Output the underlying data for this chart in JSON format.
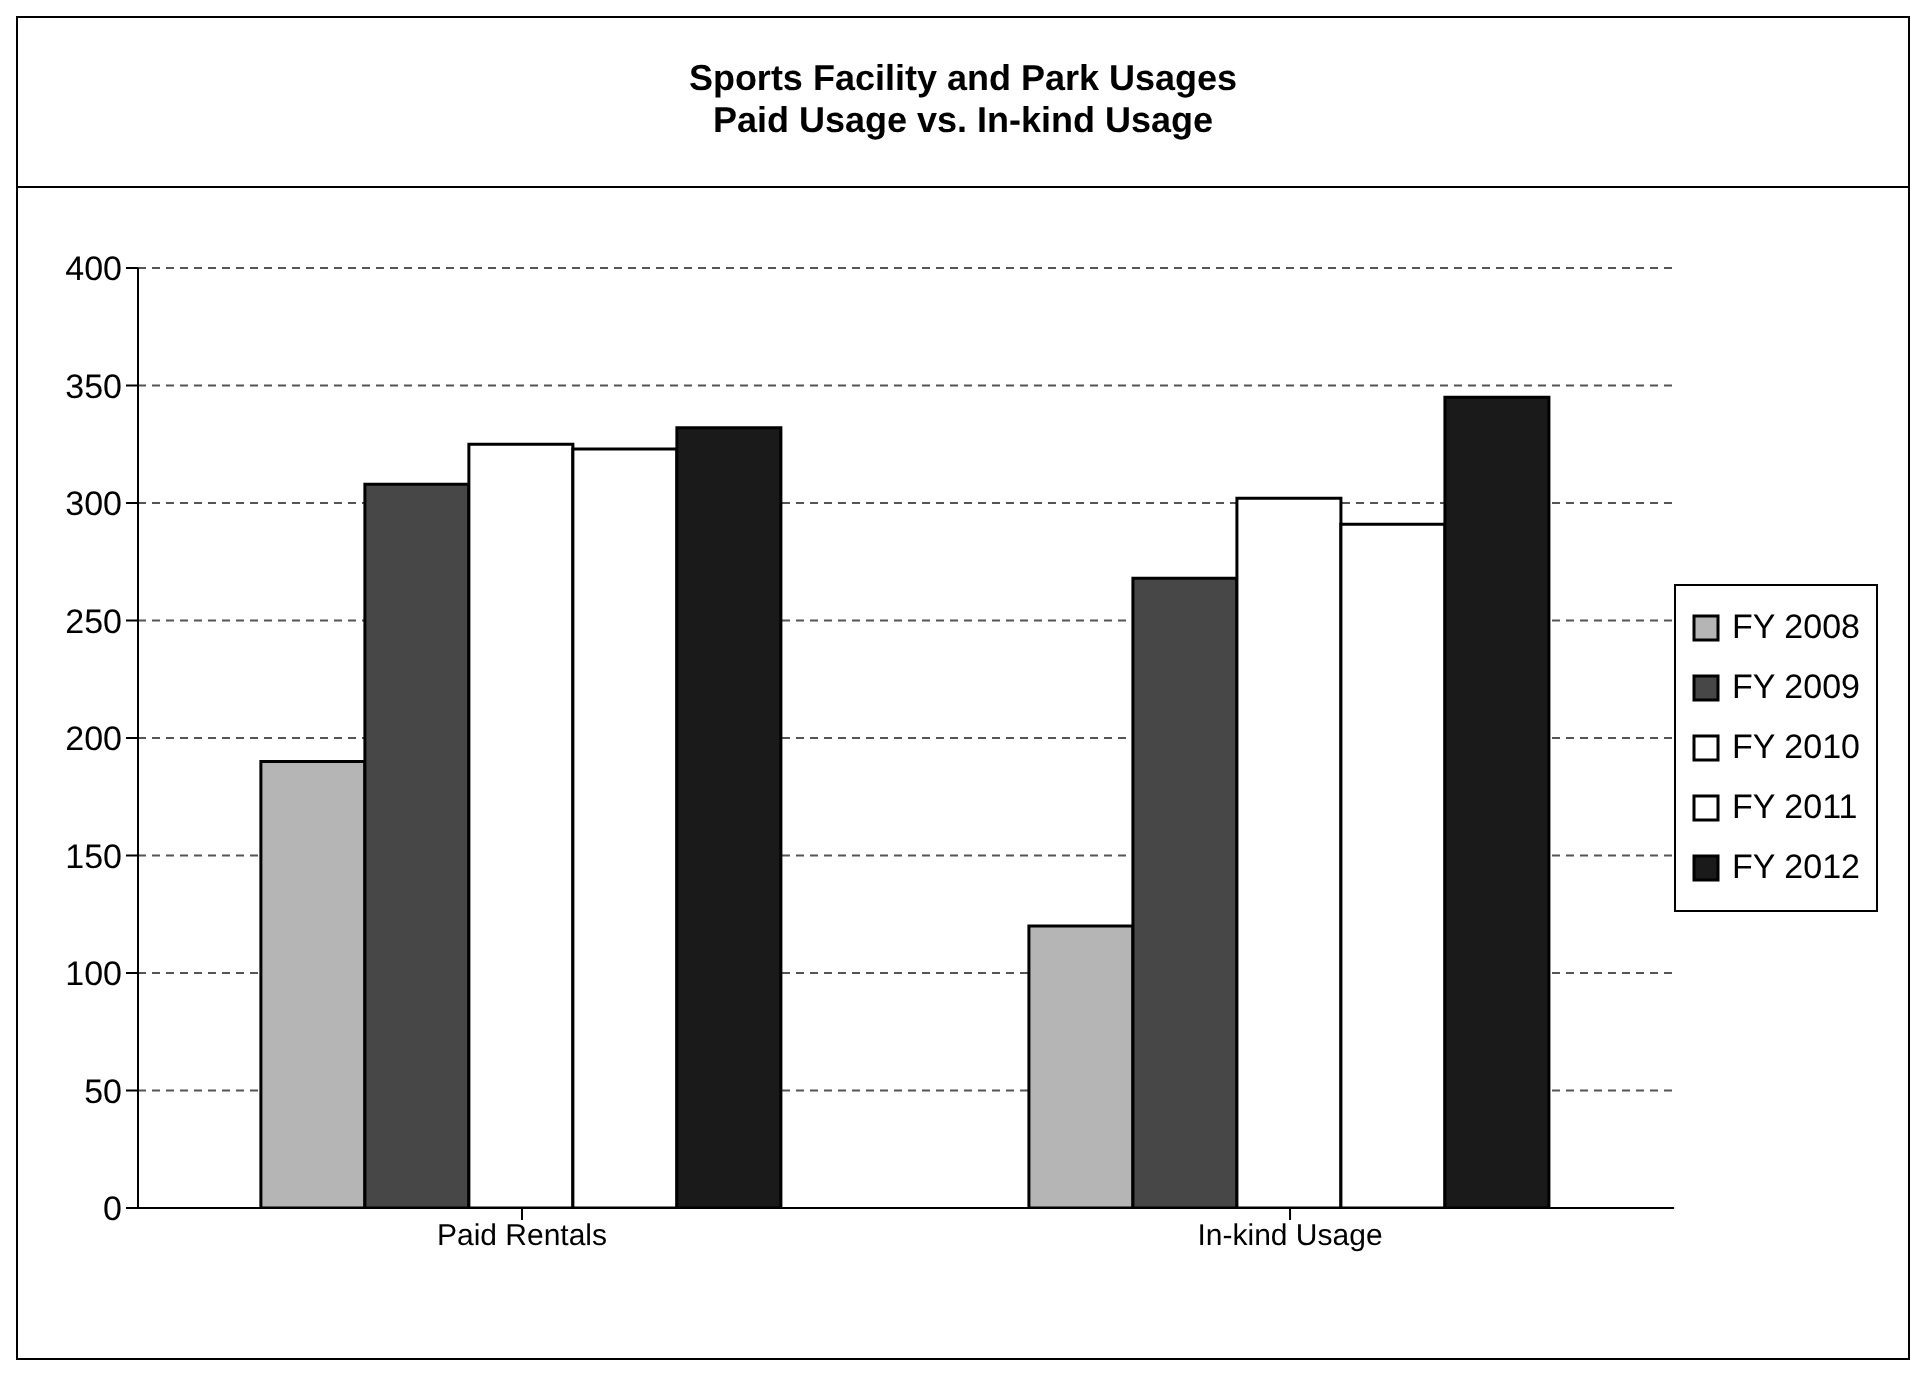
{
  "chart_data": {
    "type": "bar",
    "title": "Sports Facility and Park Usages",
    "subtitle": "Paid Usage vs. In-kind Usage",
    "categories": [
      "Paid Rentals",
      "In-kind Usage"
    ],
    "series": [
      {
        "name": "FY 2008",
        "color": "#b5b5b5",
        "values": [
          190,
          120
        ]
      },
      {
        "name": "FY 2009",
        "color": "#474747",
        "values": [
          308,
          268
        ]
      },
      {
        "name": "FY 2010",
        "color": "#ffffff",
        "values": [
          325,
          302
        ]
      },
      {
        "name": "FY 2011",
        "color": "#ffffff",
        "values": [
          323,
          291
        ]
      },
      {
        "name": "FY 2012",
        "color": "#1a1a1a",
        "values": [
          332,
          345
        ]
      }
    ],
    "ylim": [
      0,
      400
    ],
    "yticks": [
      0,
      50,
      100,
      150,
      200,
      250,
      300,
      350,
      400
    ],
    "grid": "y",
    "legend": "right"
  }
}
